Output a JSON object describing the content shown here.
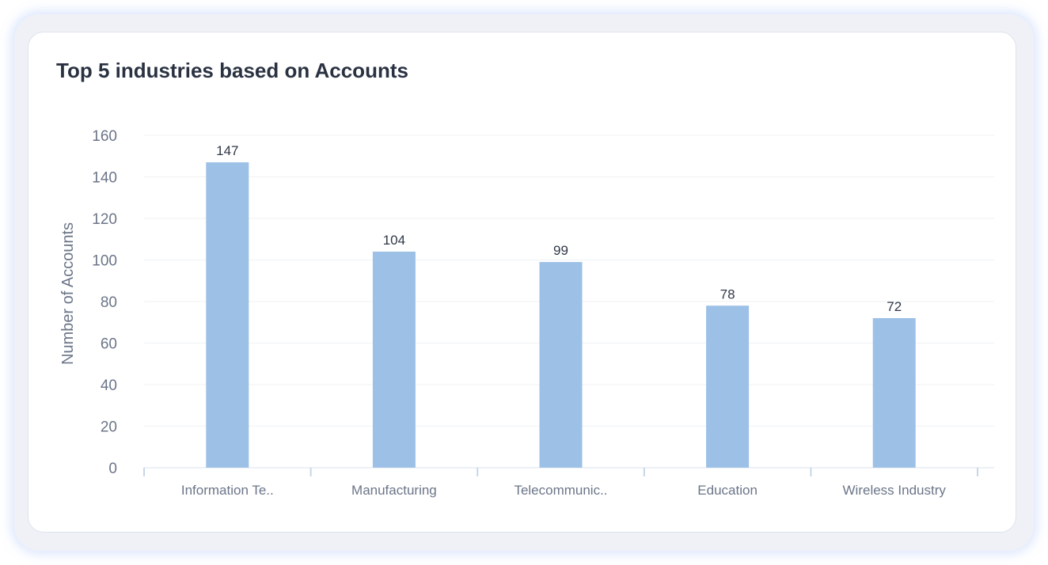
{
  "chart_data": {
    "type": "bar",
    "title": "Top 5 industries based on Accounts",
    "xlabel": "",
    "ylabel": "Number of Accounts",
    "categories": [
      "Information Te..",
      "Manufacturing",
      "Telecommunic..",
      "Education",
      "Wireless Industry"
    ],
    "values": [
      147,
      104,
      99,
      78,
      72
    ],
    "ylim": [
      0,
      160
    ],
    "yticks": [
      0,
      20,
      40,
      60,
      80,
      100,
      120,
      140,
      160
    ],
    "grid": true,
    "legend": "none",
    "bar_color": "#9dc0e6"
  }
}
